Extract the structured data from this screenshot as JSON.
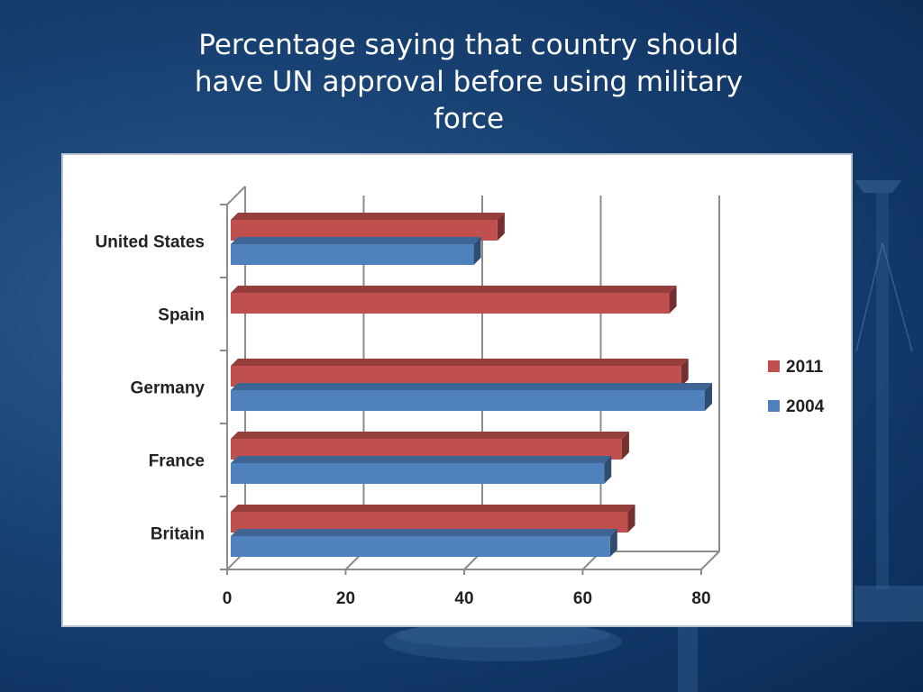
{
  "slide": {
    "title": "Percentage saying that country should have UN approval before using military force"
  },
  "chart_data": {
    "type": "bar",
    "orientation": "horizontal",
    "style": "3d-clustered",
    "categories": [
      "United States",
      "Spain",
      "Germany",
      "France",
      "Britain"
    ],
    "series": [
      {
        "name": "2011",
        "color": "#c0504d",
        "values": [
          45,
          74,
          76,
          66,
          67
        ]
      },
      {
        "name": "2004",
        "color": "#4f81bd",
        "values": [
          41,
          null,
          80,
          63,
          64
        ]
      }
    ],
    "xlim": [
      0,
      80
    ],
    "xticks": [
      "0",
      "20",
      "40",
      "60",
      "80"
    ],
    "grid": true,
    "legend_position": "right",
    "title": "",
    "xlabel": "",
    "ylabel": ""
  }
}
